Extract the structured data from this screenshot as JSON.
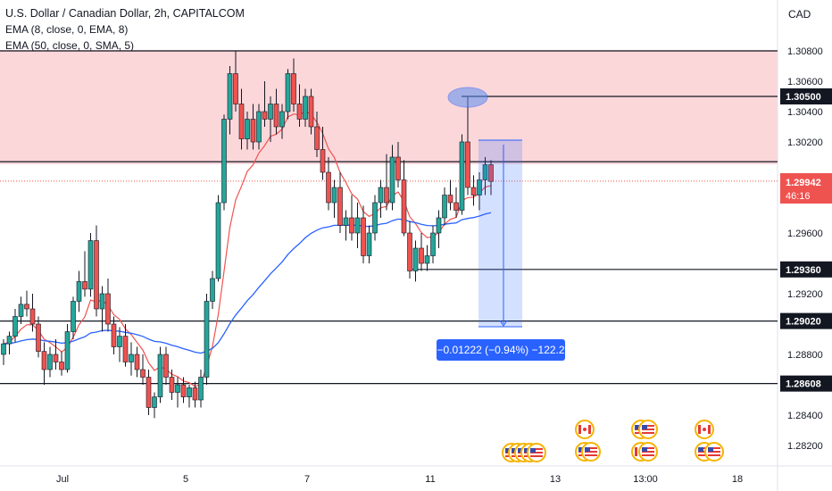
{
  "legend": {
    "title": "U.S. Dollar / Canadian Dollar, 2h, CAPITALCOM",
    "ema1": "EMA (8, close, 0, EMA, 8)",
    "ema2": "EMA (50, close, 0, SMA, 5)"
  },
  "currency": "CAD",
  "y_ticks": [
    "1.30800",
    "1.30600",
    "1.30400",
    "1.30200",
    "1.29600",
    "1.29200",
    "1.28800",
    "1.28400",
    "1.28200"
  ],
  "x_ticks": [
    "Jul",
    "5",
    "7",
    "11",
    "13",
    "13:00",
    "18"
  ],
  "level_tags": [
    "1.30500",
    "1.29360",
    "1.29020",
    "1.28608"
  ],
  "price_tag": {
    "price": "1.29942",
    "countdown": "46:16"
  },
  "measure_label": "−0.01222 (−0.94%) −122.2",
  "chart_data": {
    "type": "candlestick",
    "title": "U.S. Dollar / Canadian Dollar, 2h, CAPITALCOM",
    "ylim": [
      1.2815,
      1.3094
    ],
    "x_ticks": [
      "Jul",
      "5",
      "7",
      "11",
      "13",
      "13:00",
      "18"
    ],
    "horizontal_levels": [
      1.308,
      1.305,
      1.3007,
      1.2936,
      1.2902,
      1.28608
    ],
    "last_price": 1.29942,
    "candles": [
      [
        1.288,
        1.289,
        1.2873,
        1.2887
      ],
      [
        1.2887,
        1.2895,
        1.288,
        1.2892
      ],
      [
        1.2892,
        1.291,
        1.2888,
        1.2905
      ],
      [
        1.2905,
        1.2918,
        1.29,
        1.2913
      ],
      [
        1.2913,
        1.2922,
        1.2905,
        1.291
      ],
      [
        1.291,
        1.292,
        1.2895,
        1.29
      ],
      [
        1.29,
        1.2905,
        1.2878,
        1.2882
      ],
      [
        1.2882,
        1.2888,
        1.286,
        1.287
      ],
      [
        1.287,
        1.2885,
        1.2865,
        1.288
      ],
      [
        1.288,
        1.289,
        1.287,
        1.2875
      ],
      [
        1.2875,
        1.2882,
        1.2866,
        1.287
      ],
      [
        1.287,
        1.29,
        1.2868,
        1.2895
      ],
      [
        1.2895,
        1.2918,
        1.289,
        1.2915
      ],
      [
        1.2915,
        1.2935,
        1.2908,
        1.2928
      ],
      [
        1.2928,
        1.2948,
        1.2918,
        1.2923
      ],
      [
        1.2923,
        1.296,
        1.2918,
        1.2955
      ],
      [
        1.2955,
        1.2965,
        1.2905,
        1.291
      ],
      [
        1.291,
        1.2925,
        1.2895,
        1.292
      ],
      [
        1.292,
        1.293,
        1.2895,
        1.29
      ],
      [
        1.29,
        1.2905,
        1.288,
        1.2885
      ],
      [
        1.2885,
        1.2898,
        1.2875,
        1.2892
      ],
      [
        1.2892,
        1.29,
        1.2872,
        1.2875
      ],
      [
        1.2875,
        1.2888,
        1.2866,
        1.288
      ],
      [
        1.288,
        1.2885,
        1.2865,
        1.287
      ],
      [
        1.287,
        1.288,
        1.286,
        1.2865
      ],
      [
        1.2865,
        1.287,
        1.284,
        1.2845
      ],
      [
        1.2845,
        1.2855,
        1.2838,
        1.2852
      ],
      [
        1.2852,
        1.2885,
        1.2848,
        1.288
      ],
      [
        1.288,
        1.2885,
        1.286,
        1.2865
      ],
      [
        1.2865,
        1.287,
        1.285,
        1.2855
      ],
      [
        1.2855,
        1.2865,
        1.2845,
        1.286
      ],
      [
        1.286,
        1.2865,
        1.2848,
        1.2852
      ],
      [
        1.2852,
        1.286,
        1.2845,
        1.2858
      ],
      [
        1.2858,
        1.2862,
        1.2845,
        1.285
      ],
      [
        1.285,
        1.287,
        1.2845,
        1.2865
      ],
      [
        1.2865,
        1.292,
        1.286,
        1.2915
      ],
      [
        1.2915,
        1.2935,
        1.291,
        1.293
      ],
      [
        1.293,
        1.2985,
        1.2928,
        1.298
      ],
      [
        1.298,
        1.3038,
        1.2975,
        1.3035
      ],
      [
        1.3035,
        1.307,
        1.3025,
        1.3065
      ],
      [
        1.3065,
        1.308,
        1.304,
        1.3045
      ],
      [
        1.3045,
        1.3055,
        1.3015,
        1.3022
      ],
      [
        1.3022,
        1.304,
        1.3015,
        1.3035
      ],
      [
        1.3035,
        1.3045,
        1.3015,
        1.302
      ],
      [
        1.302,
        1.3045,
        1.3015,
        1.304
      ],
      [
        1.304,
        1.306,
        1.303,
        1.3035
      ],
      [
        1.3035,
        1.305,
        1.302,
        1.3045
      ],
      [
        1.3045,
        1.3055,
        1.3025,
        1.303
      ],
      [
        1.303,
        1.3045,
        1.3022,
        1.304
      ],
      [
        1.304,
        1.3068,
        1.3035,
        1.3065
      ],
      [
        1.3065,
        1.3075,
        1.304,
        1.3045
      ],
      [
        1.3045,
        1.3058,
        1.303,
        1.3035
      ],
      [
        1.3035,
        1.3055,
        1.303,
        1.305
      ],
      [
        1.305,
        1.3055,
        1.3025,
        1.303
      ],
      [
        1.303,
        1.304,
        1.301,
        1.3015
      ],
      [
        1.3015,
        1.303,
        1.2995,
        1.3
      ],
      [
        1.3,
        1.301,
        1.2975,
        1.298
      ],
      [
        1.298,
        1.2995,
        1.297,
        1.299
      ],
      [
        1.299,
        1.3,
        1.296,
        1.2965
      ],
      [
        1.2965,
        1.2975,
        1.2955,
        1.297
      ],
      [
        1.297,
        1.2985,
        1.2955,
        1.296
      ],
      [
        1.296,
        1.298,
        1.295,
        1.297
      ],
      [
        1.297,
        1.2978,
        1.294,
        1.2945
      ],
      [
        1.2945,
        1.2965,
        1.294,
        1.296
      ],
      [
        1.296,
        1.2985,
        1.2955,
        1.298
      ],
      [
        1.298,
        1.2995,
        1.297,
        1.299
      ],
      [
        1.299,
        1.3012,
        1.2975,
        1.298
      ],
      [
        1.298,
        1.3018,
        1.2975,
        1.301
      ],
      [
        1.301,
        1.302,
        1.299,
        1.2995
      ],
      [
        1.2995,
        1.3008,
        1.2958,
        1.296
      ],
      [
        1.296,
        1.2968,
        1.293,
        1.2935
      ],
      [
        1.2935,
        1.2955,
        1.2928,
        1.295
      ],
      [
        1.295,
        1.296,
        1.2935,
        1.294
      ],
      [
        1.294,
        1.2952,
        1.2935,
        1.2945
      ],
      [
        1.2945,
        1.2965,
        1.294,
        1.296
      ],
      [
        1.296,
        1.2975,
        1.295,
        1.297
      ],
      [
        1.297,
        1.299,
        1.2965,
        1.2985
      ],
      [
        1.2985,
        1.2995,
        1.2975,
        1.298
      ],
      [
        1.298,
        1.299,
        1.297,
        1.2975
      ],
      [
        1.2975,
        1.3025,
        1.2972,
        1.302
      ],
      [
        1.302,
        1.305,
        1.2985,
        1.299
      ],
      [
        1.299,
        1.2998,
        1.2978,
        1.2985
      ],
      [
        1.2985,
        1.3,
        1.2975,
        1.2995
      ],
      [
        1.2995,
        1.301,
        1.2985,
        1.3005
      ],
      [
        1.3005,
        1.3008,
        1.2985,
        1.2994
      ]
    ]
  }
}
